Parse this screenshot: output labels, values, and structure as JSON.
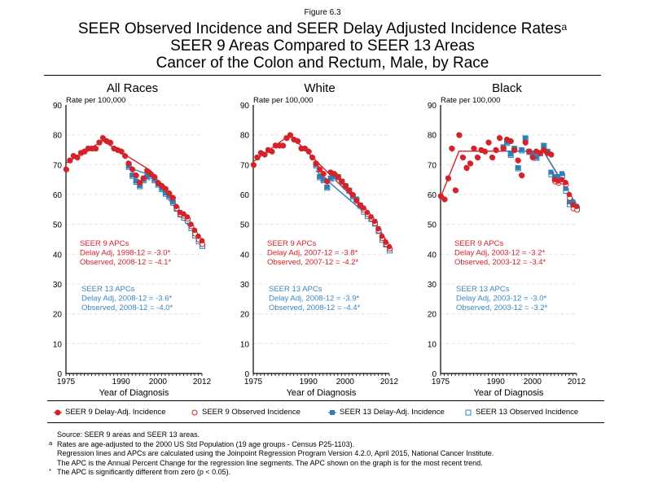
{
  "figure_label": "Figure 6.3",
  "title_lines": [
    "SEER Observed Incidence and SEER Delay Adjusted Incidence Rates",
    "SEER 9 Areas Compared to SEER 13 Areas",
    "Cancer of the Colon and Rectum, Male, by Race"
  ],
  "title_superscript": "a",
  "colors": {
    "seer9": "#d2232a",
    "seer13": "#2f7fb5",
    "grid": "#dddddd",
    "annotation_seer9": "#d2232a",
    "annotation_seer13": "#3a87c0"
  },
  "legend": [
    {
      "label": "SEER 9 Delay-Adj. Incidence",
      "symbol": "filled-circle",
      "series": "seer9"
    },
    {
      "label": "SEER 9 Observed Incidence",
      "symbol": "open-circle",
      "series": "seer9"
    },
    {
      "label": "SEER 13 Delay-Adj. Incidence",
      "symbol": "filled-square",
      "series": "seer13"
    },
    {
      "label": "SEER 13 Observed Incidence",
      "symbol": "open-square",
      "series": "seer13"
    }
  ],
  "footnotes": [
    {
      "mark": "",
      "text": "Source: SEER 9 areas and SEER 13 areas."
    },
    {
      "mark": "a",
      "text": "Rates are age-adjusted to the 2000 US Std Population (19 age groups - Census P25-1103)."
    },
    {
      "mark": "",
      "text": "Regression lines and APCs are calculated using the Joinpoint Regression Program Version 4.2.0, April 2015, National Cancer Institute."
    },
    {
      "mark": "",
      "text": "The APC is the Annual Percent Change for the regression line segments. The APC shown on the graph is for the most recent trend."
    },
    {
      "mark": "*",
      "text": "The APC is significantly different from zero (p < 0.05)."
    }
  ],
  "chart_data": [
    {
      "type": "scatter",
      "title": "All Races",
      "xlabel": "Year of Diagnosis",
      "ylabel": "Rate per 100,000",
      "xlim": [
        1975,
        2012
      ],
      "ylim": [
        0,
        90
      ],
      "xticks": [
        1975,
        1990,
        2000,
        2012
      ],
      "yticks": [
        0,
        10,
        20,
        30,
        40,
        50,
        60,
        70,
        80,
        90
      ],
      "grid": true,
      "annotations": {
        "seer9": [
          "SEER 9 APCs",
          "Delay Adj, 1998-12 = -3.0*",
          "Observed, 2008-12 = -4.1*"
        ],
        "seer13": [
          "SEER 13 APCs",
          "Delay Adj, 2008-12 = -3.6*",
          "Observed, 2008-12 = -4.0*"
        ]
      },
      "series": [
        {
          "name": "SEER 9 Delay-Adj. Incidence",
          "x_start": 1975,
          "values": [
            68.5,
            71.5,
            73,
            72.5,
            74,
            74.5,
            75.5,
            75.5,
            75.5,
            77.5,
            79,
            78,
            77.5,
            75.5,
            75,
            74.5,
            73,
            70.5,
            68.5,
            66.5,
            64,
            65.5,
            68,
            67,
            66,
            64,
            63,
            62,
            60.5,
            59,
            56,
            54,
            53.5,
            52.5,
            50,
            48,
            46,
            44.5
          ]
        },
        {
          "name": "SEER 9 Observed Incidence",
          "x_start": 1975,
          "values": [
            68.5,
            71.5,
            73,
            72.5,
            74,
            74.5,
            75.5,
            75.5,
            75.5,
            77.5,
            79,
            78,
            77.5,
            75.5,
            75,
            74.5,
            73,
            70.5,
            68.5,
            66.5,
            64,
            65.5,
            68,
            67,
            66,
            64,
            63,
            62,
            60.5,
            59,
            55.5,
            53.5,
            53,
            52,
            49.5,
            47,
            45,
            43.5
          ]
        },
        {
          "name": "SEER 13 Delay-Adj. Incidence",
          "x_start": 1992,
          "values": [
            69.5,
            66.5,
            64.5,
            63,
            65,
            66,
            66.5,
            65,
            63.5,
            62,
            60.5,
            59.5,
            57.5,
            55.5,
            54,
            53,
            52,
            49.5,
            47,
            45.5,
            43.5
          ]
        },
        {
          "name": "SEER 13 Observed Incidence",
          "x_start": 1992,
          "values": [
            69.5,
            66.5,
            64.5,
            63,
            65,
            66,
            66.5,
            65,
            63.5,
            62,
            60.5,
            59.5,
            57.5,
            55.5,
            53.5,
            52.5,
            51.5,
            49,
            46.5,
            44.5,
            43
          ]
        },
        {
          "name": "SEER 9 Delay-Adj. Trend",
          "role": "trend",
          "x": [
            1975,
            1985,
            1998,
            2012
          ],
          "values": [
            70.5,
            78,
            68,
            44
          ]
        },
        {
          "name": "SEER 13 Delay-Adj. Trend",
          "role": "trend",
          "x": [
            1992,
            1998,
            2012
          ],
          "values": [
            69,
            66.5,
            43.5
          ]
        }
      ]
    },
    {
      "type": "scatter",
      "title": "White",
      "xlabel": "Year of Diagnosis",
      "ylabel": "Rate per 100,000",
      "xlim": [
        1975,
        2012
      ],
      "ylim": [
        0,
        90
      ],
      "xticks": [
        1975,
        1990,
        2000,
        2012
      ],
      "yticks": [
        0,
        10,
        20,
        30,
        40,
        50,
        60,
        70,
        80,
        90
      ],
      "grid": true,
      "annotations": {
        "seer9": [
          "SEER 9 APCs",
          "Delay Adj, 2007-12 = -3.8*",
          "Observed, 2007-12 = -4.2*"
        ],
        "seer13": [
          "SEER 13 APCs",
          "Delay Adj, 2008-12 = -3.9*",
          "Observed, 2008-12 = -4.4*"
        ]
      },
      "series": [
        {
          "name": "SEER 9 Delay-Adj. Incidence",
          "x_start": 1975,
          "values": [
            70,
            72.5,
            74,
            73.5,
            75,
            74.5,
            76.5,
            76.5,
            76.5,
            79,
            80,
            78.5,
            78,
            75.5,
            75.5,
            74.5,
            72.5,
            70.5,
            68.5,
            67,
            64.5,
            67.5,
            67,
            66,
            64.5,
            63,
            61.5,
            60,
            58,
            56.5,
            55.5,
            54,
            52.5,
            51,
            48.5,
            46,
            44,
            42.5
          ]
        },
        {
          "name": "SEER 9 Observed Incidence",
          "x_start": 1975,
          "values": [
            70,
            72.5,
            74,
            73.5,
            75,
            74.5,
            76.5,
            76.5,
            76.5,
            79,
            80,
            78.5,
            78,
            75.5,
            75.5,
            74.5,
            72.5,
            70.5,
            68.5,
            67,
            64.5,
            67.5,
            67,
            66,
            64.5,
            63,
            61.5,
            60,
            58,
            56.5,
            55,
            53.5,
            52,
            50.5,
            48,
            45.5,
            43.5,
            42
          ]
        },
        {
          "name": "SEER 13 Delay-Adj. Incidence",
          "x_start": 1992,
          "values": [
            70,
            66,
            65,
            62.5,
            65.5,
            66,
            66,
            64.5,
            63,
            61.5,
            59.5,
            58.5,
            56.5,
            55,
            53.5,
            52.5,
            51,
            48.5,
            45.5,
            44,
            42
          ]
        },
        {
          "name": "SEER 13 Observed Incidence",
          "x_start": 1992,
          "values": [
            70,
            66,
            65,
            62.5,
            65.5,
            66,
            66,
            64.5,
            63,
            61.5,
            59.5,
            58.5,
            56.5,
            54.5,
            53,
            52,
            50.5,
            48,
            45,
            43.5,
            41.5
          ]
        },
        {
          "name": "SEER 9 Delay-Adj. Trend",
          "role": "trend",
          "x": [
            1975,
            1985,
            2007,
            2012
          ],
          "values": [
            71,
            80,
            53,
            43
          ]
        },
        {
          "name": "SEER 13 Delay-Adj. Trend",
          "role": "trend",
          "x": [
            1992,
            2008,
            2012
          ],
          "values": [
            68,
            51,
            42.5
          ]
        }
      ]
    },
    {
      "type": "scatter",
      "title": "Black",
      "xlabel": "Year of Diagnosis",
      "ylabel": "Rate per 100,000",
      "xlim": [
        1975,
        2012
      ],
      "ylim": [
        0,
        90
      ],
      "xticks": [
        1975,
        1990,
        2000,
        2012
      ],
      "yticks": [
        0,
        10,
        20,
        30,
        40,
        50,
        60,
        70,
        80,
        90
      ],
      "grid": true,
      "annotations": {
        "seer9": [
          "SEER 9 APCs",
          "Delay Adj, 2003-12 = -3.2*",
          "Observed, 2003-12 = -3.4*"
        ],
        "seer13": [
          "SEER 13 APCs",
          "Delay Adj, 2003-12 = -3.0*",
          "Observed, 2003-12 = -3.2*"
        ]
      },
      "series": [
        {
          "name": "SEER 9 Delay-Adj. Incidence",
          "x_start": 1975,
          "values": [
            59.5,
            58.5,
            65.5,
            75.5,
            61.5,
            80,
            72.5,
            69,
            70.5,
            75.5,
            72.5,
            75,
            74.5,
            77.5,
            72.5,
            75,
            79,
            75.5,
            78.5,
            78,
            75,
            71.5,
            66.5,
            77.5,
            74.5,
            72.5,
            74.5,
            74,
            75,
            74,
            73.5,
            65,
            64.5,
            65,
            64,
            60,
            56.5,
            56
          ]
        },
        {
          "name": "SEER 9 Observed Incidence",
          "x_start": 1975,
          "values": [
            59.5,
            58.5,
            65.5,
            75.5,
            61.5,
            80,
            72.5,
            69,
            70.5,
            75.5,
            72.5,
            75,
            74.5,
            77.5,
            72.5,
            75,
            79,
            75.5,
            78.5,
            78,
            75,
            71.5,
            66.5,
            77.5,
            74.5,
            72.5,
            74.5,
            74,
            75,
            74,
            73.5,
            64.5,
            64,
            64.5,
            63.5,
            59,
            55.5,
            55
          ]
        },
        {
          "name": "SEER 13 Delay-Adj. Incidence",
          "x_start": 1992,
          "values": [
            76,
            77.5,
            73.5,
            75.5,
            69,
            75,
            79,
            74.5,
            73.5,
            72.5,
            74,
            76.5,
            74.5,
            67.5,
            66,
            66,
            67,
            62,
            57.5,
            57.5,
            56
          ]
        },
        {
          "name": "SEER 13 Observed Incidence",
          "x_start": 1992,
          "values": [
            76,
            77.5,
            73.5,
            75.5,
            69,
            75,
            79,
            74.5,
            73.5,
            72.5,
            74,
            76.5,
            74.5,
            67,
            65.5,
            65.5,
            66.5,
            61.5,
            57,
            57,
            55.5
          ]
        },
        {
          "name": "SEER 9 Delay-Adj. Trend",
          "role": "trend",
          "x": [
            1975,
            1980,
            2003,
            2012
          ],
          "values": [
            59,
            74.5,
            74.5,
            56
          ]
        },
        {
          "name": "SEER 13 Delay-Adj. Trend",
          "role": "trend",
          "x": [
            1992,
            2003,
            2012
          ],
          "values": [
            74.5,
            74.5,
            56.5
          ]
        }
      ]
    }
  ]
}
